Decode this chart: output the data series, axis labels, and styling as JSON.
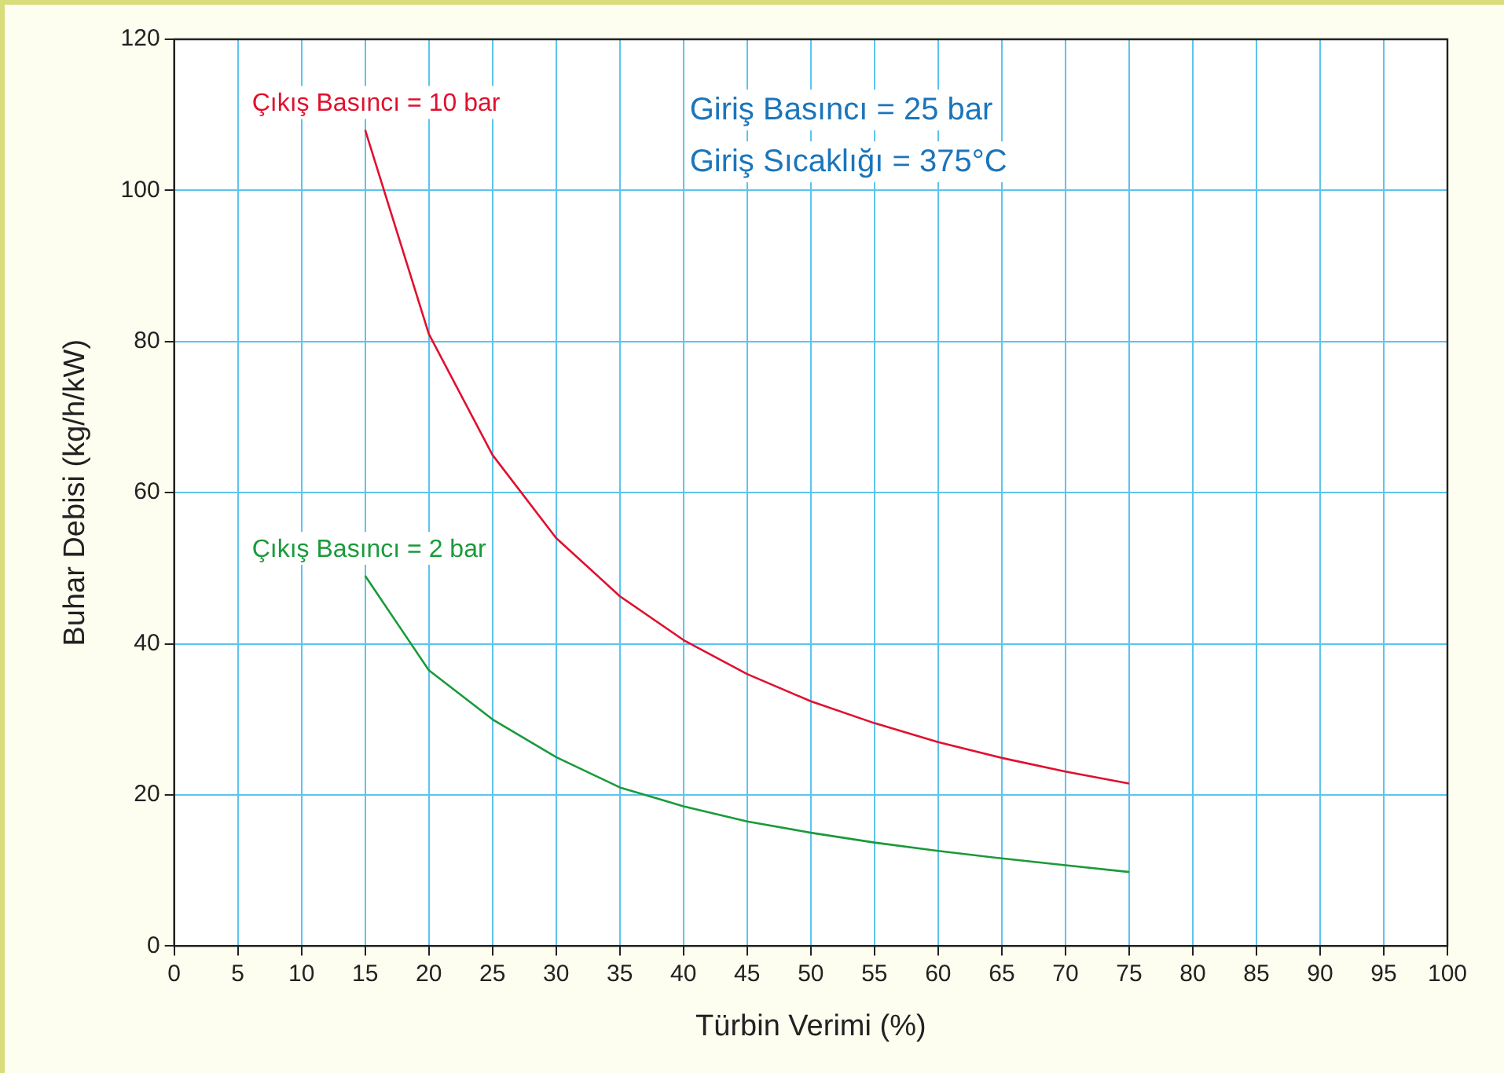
{
  "chart_data": {
    "type": "line",
    "xlabel": "Türbin Verimi (%)",
    "ylabel": "Buhar Debisi (kg/h/kW)",
    "annotations": [
      "Giriş Basıncı = 25 bar",
      "Giriş Sıcaklığı = 375°C"
    ],
    "x": [
      15,
      20,
      25,
      30,
      35,
      40,
      45,
      50,
      55,
      60,
      65,
      70,
      75
    ],
    "series": [
      {
        "name": "Çıkış Basıncı = 10 bar",
        "color": "#e0102e",
        "values": [
          108,
          81,
          65,
          54,
          46.3,
          40.5,
          36,
          32.4,
          29.5,
          27,
          24.9,
          23.1,
          21.5
        ]
      },
      {
        "name": "Çıkış Basıncı = 2 bar",
        "color": "#1a9a3a",
        "values": [
          49,
          36.5,
          30,
          25,
          21,
          18.5,
          16.5,
          15,
          13.7,
          12.6,
          11.6,
          10.7,
          9.8
        ]
      }
    ],
    "xlim": [
      0,
      100
    ],
    "xticks": [
      0,
      5,
      10,
      15,
      20,
      25,
      30,
      35,
      40,
      45,
      50,
      55,
      60,
      65,
      70,
      75,
      80,
      85,
      90,
      95,
      100
    ],
    "ylim": [
      0,
      120
    ],
    "yticks": [
      0,
      20,
      40,
      60,
      80,
      100,
      120
    ],
    "grid": true,
    "legend": false,
    "marker": "none",
    "line_style": "solid"
  }
}
